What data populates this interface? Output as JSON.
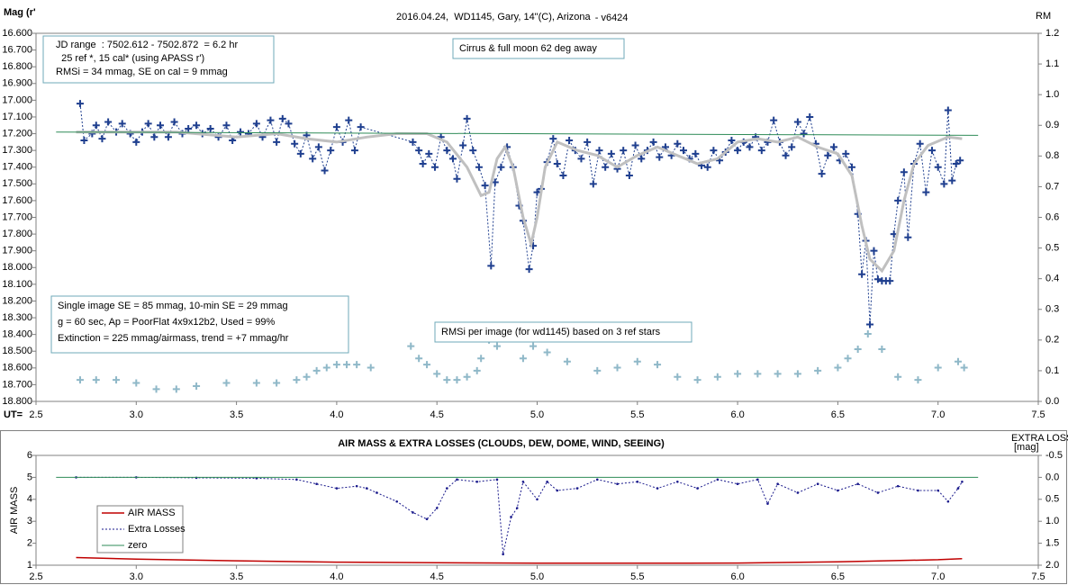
{
  "chart_data": [
    {
      "type": "line",
      "title": "2016.04.24,  WD1145, Gary, 14\"(C), Arizona",
      "subtitle": " - v6424",
      "ylabel": "Mag (r'",
      "y2label": "RM",
      "xlabel": "UT=",
      "xlim": [
        2.5,
        7.5
      ],
      "xticks": [
        2.5,
        {
          "value": 3,
          "label": "3.0"
        },
        3.5,
        {
          "value": 4,
          "label": "4.0"
        },
        4.5,
        {
          "value": 5,
          "label": "5.0"
        },
        5.5,
        {
          "value": 6,
          "label": "6.0"
        },
        6.5,
        {
          "value": 7,
          "label": "7.0"
        },
        7.5
      ],
      "ylim": [
        18.8,
        16.6
      ],
      "yticks": [
        {
          "value": 16.6,
          "label": "16.600"
        },
        {
          "value": 16.7,
          "label": "16.700"
        },
        {
          "value": 16.8,
          "label": "16.800"
        },
        {
          "value": 16.9,
          "label": "16.900"
        },
        {
          "value": 17.0,
          "label": "17.000"
        },
        {
          "value": 17.1,
          "label": "17.100"
        },
        {
          "value": 17.2,
          "label": "17.200"
        },
        {
          "value": 17.3,
          "label": "17.300"
        },
        {
          "value": 17.4,
          "label": "17.400"
        },
        {
          "value": 17.5,
          "label": "17.500"
        },
        {
          "value": 17.6,
          "label": "17.600"
        },
        {
          "value": 17.7,
          "label": "17.700"
        },
        {
          "value": 17.8,
          "label": "17.800"
        },
        {
          "value": 17.9,
          "label": "17.900"
        },
        {
          "value": 18.0,
          "label": "18.000"
        },
        {
          "value": 18.1,
          "label": "18.100"
        },
        {
          "value": 18.2,
          "label": "18.200"
        },
        {
          "value": 18.3,
          "label": "18.300"
        },
        {
          "value": 18.4,
          "label": "18.400"
        },
        {
          "value": 18.5,
          "label": "18.500"
        },
        {
          "value": 18.6,
          "label": "18.600"
        },
        {
          "value": 18.7,
          "label": "18.700"
        },
        {
          "value": 18.8,
          "label": "18.800"
        }
      ],
      "y2lim": [
        0,
        1.2
      ],
      "y2ticks": [
        {
          "value": 0,
          "label": "0.0"
        },
        0.1,
        0.2,
        0.3,
        0.4,
        0.5,
        0.6,
        0.7,
        0.8,
        0.9,
        {
          "value": 1,
          "label": "1.0"
        },
        1.1,
        1.2
      ],
      "grid": false,
      "annotations": [
        "JD range  : 7502.612 - 7502.872  = 6.2 hr",
        "  25 ref *, 15 cal* (using APASS r')",
        "RMSi = 34 mmag, SE on cal = 9 mmag",
        "Cirrus & full moon 62 deg away",
        "Single image SE = 85 mmag, 10-min SE = 29 mmag",
        "g = 60 sec, Ap = PoorFlat 4x9x12b2, Used = 99%",
        "Extinction = 225 mmag/airmass, trend = +7 mmag/hr",
        "RMSi per image (for wd1145) based on 3 ref stars"
      ],
      "series": [
        {
          "color": "#1f3f8f",
          "marker": "cross",
          "line": "dashed",
          "width": 1,
          "x": [
            2.72,
            2.74,
            2.78,
            2.8,
            2.83,
            2.86,
            2.9,
            2.93,
            2.97,
            3.0,
            3.03,
            3.06,
            3.09,
            3.12,
            3.16,
            3.19,
            3.23,
            3.26,
            3.3,
            3.33,
            3.37,
            3.41,
            3.45,
            3.48,
            3.52,
            3.56,
            3.6,
            3.63,
            3.67,
            3.7,
            3.73,
            3.76,
            3.79,
            3.82,
            3.85,
            3.88,
            3.91,
            3.94,
            3.97,
            4.0,
            4.03,
            4.06,
            4.09,
            4.12,
            4.38,
            4.41,
            4.43,
            4.46,
            4.49,
            4.52,
            4.55,
            4.58,
            4.6,
            4.63,
            4.65,
            4.68,
            4.71,
            4.74,
            4.77,
            4.79,
            4.82,
            4.85,
            4.88,
            4.91,
            4.93,
            4.96,
            4.98,
            5.0,
            5.02,
            5.05,
            5.08,
            5.1,
            5.13,
            5.16,
            5.19,
            5.22,
            5.25,
            5.28,
            5.31,
            5.34,
            5.37,
            5.4,
            5.43,
            5.46,
            5.49,
            5.52,
            5.55,
            5.58,
            5.61,
            5.64,
            5.67,
            5.7,
            5.73,
            5.76,
            5.79,
            5.82,
            5.85,
            5.88,
            5.91,
            5.94,
            5.97,
            6.0,
            6.03,
            6.06,
            6.09,
            6.12,
            6.15,
            6.18,
            6.21,
            6.24,
            6.27,
            6.3,
            6.33,
            6.36,
            6.39,
            6.42,
            6.45,
            6.48,
            6.51,
            6.54,
            6.57,
            6.6,
            6.62,
            6.64,
            6.66,
            6.68,
            6.7,
            6.72,
            6.74,
            6.76,
            6.78,
            6.8,
            6.83,
            6.85,
            6.88,
            6.91,
            6.94,
            6.97,
            7.0,
            7.03,
            7.05,
            7.07,
            7.09,
            7.11
          ],
          "values": [
            17.02,
            17.24,
            17.2,
            17.15,
            17.23,
            17.13,
            17.19,
            17.14,
            17.2,
            17.25,
            17.19,
            17.14,
            17.22,
            17.15,
            17.22,
            17.13,
            17.2,
            17.17,
            17.15,
            17.2,
            17.17,
            17.22,
            17.15,
            17.24,
            17.19,
            17.2,
            17.14,
            17.22,
            17.12,
            17.25,
            17.11,
            17.14,
            17.26,
            17.32,
            17.21,
            17.35,
            17.28,
            17.42,
            17.3,
            17.16,
            17.25,
            17.12,
            17.3,
            17.16,
            17.25,
            17.3,
            17.38,
            17.32,
            17.4,
            17.22,
            17.3,
            17.35,
            17.47,
            17.27,
            17.11,
            17.3,
            17.4,
            17.51,
            17.99,
            17.49,
            17.4,
            17.28,
            17.4,
            17.63,
            17.72,
            18.01,
            17.87,
            17.55,
            17.53,
            17.37,
            17.23,
            17.38,
            17.45,
            17.24,
            17.3,
            17.35,
            17.25,
            17.5,
            17.3,
            17.4,
            17.32,
            17.41,
            17.3,
            17.45,
            17.27,
            17.35,
            17.3,
            17.25,
            17.34,
            17.28,
            17.33,
            17.26,
            17.3,
            17.35,
            17.32,
            17.39,
            17.4,
            17.3,
            17.36,
            17.31,
            17.24,
            17.3,
            17.25,
            17.28,
            17.22,
            17.3,
            17.25,
            17.12,
            17.25,
            17.33,
            17.28,
            17.13,
            17.2,
            17.1,
            17.26,
            17.44,
            17.33,
            17.28,
            17.36,
            17.32,
            17.4,
            17.68,
            18.04,
            17.84,
            18.34,
            17.9,
            18.07,
            18.08,
            18.08,
            18.08,
            17.8,
            17.6,
            17.43,
            17.82,
            17.38,
            17.26,
            17.55,
            17.3,
            17.4,
            17.5,
            17.06,
            17.48,
            17.38,
            17.36
          ]
        },
        {
          "color": "#c0c0c0",
          "line": "solid",
          "width": 3,
          "x": [
            2.7,
            3.2,
            3.5,
            3.7,
            3.85,
            4.0,
            4.15,
            4.3,
            4.45,
            4.55,
            4.65,
            4.72,
            4.76,
            4.8,
            4.84,
            4.88,
            4.93,
            4.97,
            5.0,
            5.04,
            5.1,
            5.2,
            5.3,
            5.4,
            5.5,
            5.6,
            5.7,
            5.8,
            5.9,
            6.0,
            6.1,
            6.2,
            6.3,
            6.4,
            6.5,
            6.57,
            6.62,
            6.66,
            6.72,
            6.78,
            6.83,
            6.88,
            6.95,
            7.05,
            7.12
          ],
          "values": [
            17.19,
            17.19,
            17.22,
            17.2,
            17.23,
            17.25,
            17.22,
            17.2,
            17.2,
            17.25,
            17.4,
            17.57,
            17.55,
            17.35,
            17.28,
            17.4,
            17.7,
            17.86,
            17.7,
            17.4,
            17.25,
            17.3,
            17.33,
            17.4,
            17.33,
            17.28,
            17.33,
            17.38,
            17.35,
            17.25,
            17.23,
            17.25,
            17.22,
            17.28,
            17.32,
            17.45,
            17.75,
            17.95,
            18.02,
            17.9,
            17.6,
            17.38,
            17.27,
            17.22,
            17.23
          ]
        },
        {
          "color": "#2e8b57",
          "line": "solid",
          "width": 1,
          "x": [
            2.6,
            7.2
          ],
          "values": [
            17.19,
            17.21
          ]
        },
        {
          "color": "#8fb8c8",
          "marker": "cross",
          "axis": "y2",
          "x": [
            2.72,
            2.8,
            2.9,
            3.0,
            3.1,
            3.2,
            3.3,
            3.45,
            3.6,
            3.7,
            3.8,
            3.85,
            3.9,
            3.95,
            4.0,
            4.05,
            4.1,
            4.17,
            4.37,
            4.41,
            4.45,
            4.5,
            4.55,
            4.6,
            4.65,
            4.7,
            4.72,
            4.76,
            4.8,
            4.93,
            4.98,
            5.05,
            5.15,
            5.3,
            5.4,
            5.5,
            5.6,
            5.7,
            5.8,
            5.9,
            6.0,
            6.1,
            6.2,
            6.3,
            6.4,
            6.5,
            6.55,
            6.6,
            6.65,
            6.72,
            6.8,
            6.9,
            7.0,
            7.1,
            7.13
          ],
          "values": [
            0.07,
            0.07,
            0.07,
            0.06,
            0.04,
            0.04,
            0.05,
            0.06,
            0.06,
            0.06,
            0.07,
            0.08,
            0.1,
            0.11,
            0.12,
            0.12,
            0.12,
            0.11,
            0.18,
            0.14,
            0.12,
            0.09,
            0.07,
            0.07,
            0.08,
            0.1,
            0.14,
            0.2,
            0.18,
            0.14,
            0.18,
            0.16,
            0.13,
            0.1,
            0.11,
            0.13,
            0.12,
            0.08,
            0.07,
            0.08,
            0.09,
            0.09,
            0.09,
            0.09,
            0.1,
            0.11,
            0.14,
            0.17,
            0.22,
            0.17,
            0.08,
            0.07,
            0.11,
            0.13,
            0.11
          ]
        }
      ]
    },
    {
      "type": "line",
      "title": "AIR MASS & EXTRA LOSSES (CLOUDS, DEW, DOME, WIND, SEEING)",
      "ylabel": "AIR MASS",
      "y2label": [
        "EXTRA LOSSES",
        "[mag]"
      ],
      "xlim": [
        2.5,
        7.5
      ],
      "xticks": [
        2.5,
        {
          "value": 3,
          "label": "3.0"
        },
        3.5,
        {
          "value": 4,
          "label": "4.0"
        },
        4.5,
        {
          "value": 5,
          "label": "5.0"
        },
        5.5,
        {
          "value": 6,
          "label": "6.0"
        },
        6.5,
        {
          "value": 7,
          "label": "7.0"
        },
        7.5
      ],
      "ylim": [
        1,
        6
      ],
      "yticks": [
        1,
        2,
        3,
        4,
        5,
        6
      ],
      "y2lim": [
        2,
        -0.5
      ],
      "y2ticks": [
        -0.5,
        {
          "value": 0,
          "label": "0.0"
        },
        0.5,
        {
          "value": 1,
          "label": "1.0"
        },
        1.5,
        {
          "value": 2,
          "label": "2.0"
        }
      ],
      "grid": false,
      "legend": "lower left",
      "series": [
        {
          "name": "AIR MASS",
          "color": "#c00000",
          "line": "solid",
          "width": 1.5,
          "x": [
            2.7,
            3.0,
            3.5,
            4.0,
            4.5,
            5.0,
            5.5,
            6.0,
            6.5,
            7.0,
            7.12
          ],
          "values": [
            1.35,
            1.28,
            1.2,
            1.14,
            1.11,
            1.09,
            1.09,
            1.1,
            1.15,
            1.25,
            1.3
          ]
        },
        {
          "name": "Extra Losses",
          "color": "#1a1a8c",
          "line": "dashed",
          "marker": "dot",
          "width": 1,
          "axis": "y2",
          "x": [
            2.7,
            3.0,
            3.3,
            3.6,
            3.8,
            3.9,
            4.0,
            4.1,
            4.15,
            4.2,
            4.3,
            4.38,
            4.45,
            4.5,
            4.55,
            4.6,
            4.7,
            4.8,
            4.83,
            4.87,
            4.9,
            4.93,
            5.0,
            5.05,
            5.1,
            5.2,
            5.3,
            5.4,
            5.5,
            5.6,
            5.7,
            5.8,
            5.9,
            6.0,
            6.1,
            6.15,
            6.2,
            6.3,
            6.4,
            6.5,
            6.6,
            6.7,
            6.8,
            6.9,
            7.0,
            7.05,
            7.1,
            7.12
          ],
          "values": [
            0.0,
            0.0,
            0.01,
            0.02,
            0.05,
            0.15,
            0.25,
            0.2,
            0.25,
            0.35,
            0.55,
            0.8,
            0.95,
            0.7,
            0.25,
            0.05,
            0.1,
            0.05,
            1.75,
            0.9,
            0.7,
            0.1,
            0.5,
            0.1,
            0.3,
            0.25,
            0.05,
            0.15,
            0.1,
            0.25,
            0.1,
            0.25,
            0.05,
            0.15,
            0.05,
            0.6,
            0.15,
            0.35,
            0.15,
            0.3,
            0.15,
            0.35,
            0.2,
            0.3,
            0.3,
            0.55,
            0.25,
            0.1
          ]
        },
        {
          "name": "zero",
          "color": "#2e8b57",
          "line": "solid",
          "width": 1,
          "axis": "y2",
          "x": [
            2.6,
            7.2
          ],
          "values": [
            0,
            0
          ]
        }
      ]
    }
  ]
}
